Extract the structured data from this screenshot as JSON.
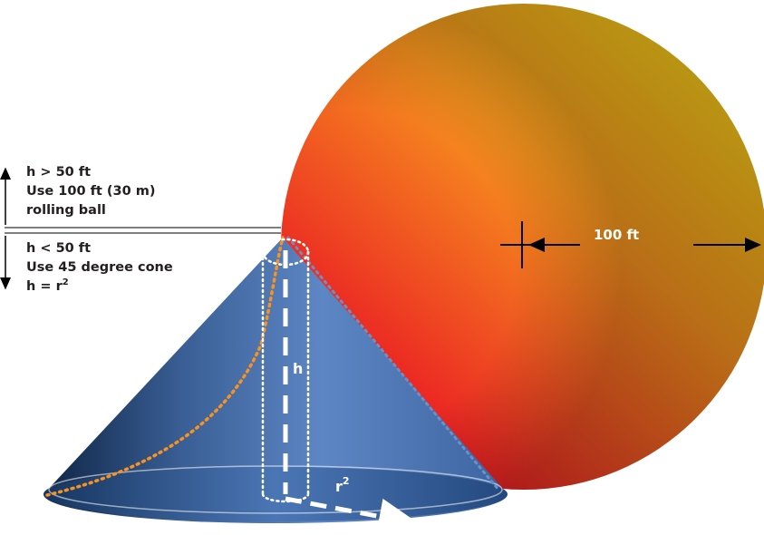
{
  "diagram": {
    "upper_zone": {
      "line1": "h > 50 ft",
      "line2": "Use 100 ft (30 m)",
      "line3": "rolling ball"
    },
    "lower_zone": {
      "line1": "h < 50 ft",
      "line2": "Use 45 degree cone",
      "line3_base": "h = r",
      "line3_sup": "2"
    },
    "sphere_label": "100 ft",
    "height_label": "h",
    "radius_label_base": "r",
    "radius_label_sup": "2",
    "colors": {
      "sphere_start": "#f6d418",
      "sphere_mid": "#f7931e",
      "sphere_end": "#ea1c24",
      "cone_light": "#5d86c4",
      "cone_dark": "#0f2545",
      "dotted_orange": "#f7931e",
      "dotted_blue": "#6b8fc7",
      "line": "#7f7f7f"
    }
  }
}
